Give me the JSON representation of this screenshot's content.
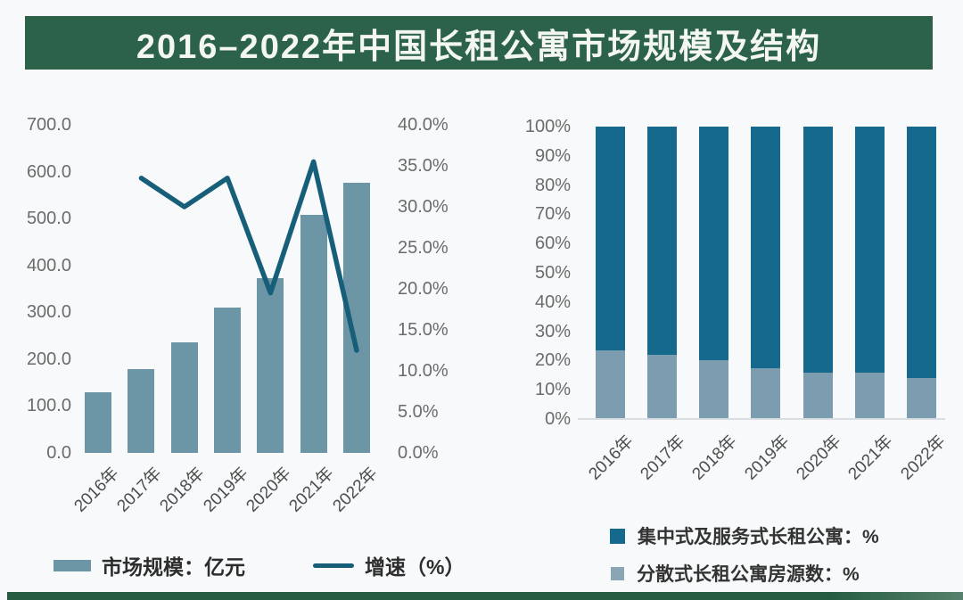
{
  "title": "2016–2022年中国长租公寓市场规模及结构",
  "colors": {
    "banner_green": "#2b6249",
    "background": "#f7f9fa",
    "bar_fill": "#6c95a6",
    "line_teal": "#175e78",
    "stack_dark": "#15698c",
    "stack_light": "#7c9daf",
    "legend_light_square": "#8aa5b3",
    "axis_text": "#6b6b6b"
  },
  "chart_data": [
    {
      "type": "bar",
      "subtype": "combo-bar-line-dual-axis",
      "categories": [
        "2016年",
        "2017年",
        "2018年",
        "2019年",
        "2020年",
        "2021年",
        "2022年"
      ],
      "series": [
        {
          "name": "市场规模：亿元",
          "render": "bar",
          "axis": "left",
          "values": [
            130,
            178,
            235,
            310,
            372,
            508,
            577
          ]
        },
        {
          "name": "增速（%）",
          "render": "line",
          "axis": "right",
          "values": [
            null,
            33.5,
            30.0,
            33.5,
            19.5,
            35.5,
            12.5
          ]
        }
      ],
      "left_axis": {
        "min": 0,
        "max": 700,
        "step": 100,
        "tick_labels": [
          "700.0",
          "600.0",
          "500.0",
          "400.0",
          "300.0",
          "200.0",
          "100.0",
          "0.0"
        ]
      },
      "right_axis": {
        "min": 0,
        "max": 40,
        "step": 5,
        "tick_labels": [
          "40.0%",
          "35.0%",
          "30.0%",
          "25.0%",
          "20.0%",
          "15.0%",
          "10.0%",
          "5.0%",
          "0.0%"
        ]
      },
      "grid": "off",
      "legend_position": "bottom"
    },
    {
      "type": "bar",
      "subtype": "stacked-100-percent",
      "categories": [
        "2016年",
        "2017年",
        "2018年",
        "2019年",
        "2020年",
        "2021年",
        "2022年"
      ],
      "series": [
        {
          "name": "集中式及服务式长租公寓：%",
          "values": [
            76.5,
            78,
            80,
            82.5,
            84,
            84,
            86
          ]
        },
        {
          "name": "分散式长租公寓房源数：%",
          "values": [
            23.5,
            22,
            20,
            17.5,
            16,
            16,
            14
          ]
        }
      ],
      "y_axis": {
        "min": 0,
        "max": 100,
        "step": 10,
        "tick_labels": [
          "100%",
          "90%",
          "80%",
          "70%",
          "60%",
          "50%",
          "40%",
          "30%",
          "20%",
          "10%",
          "0%"
        ]
      },
      "grid": "off",
      "legend_position": "bottom"
    }
  ]
}
